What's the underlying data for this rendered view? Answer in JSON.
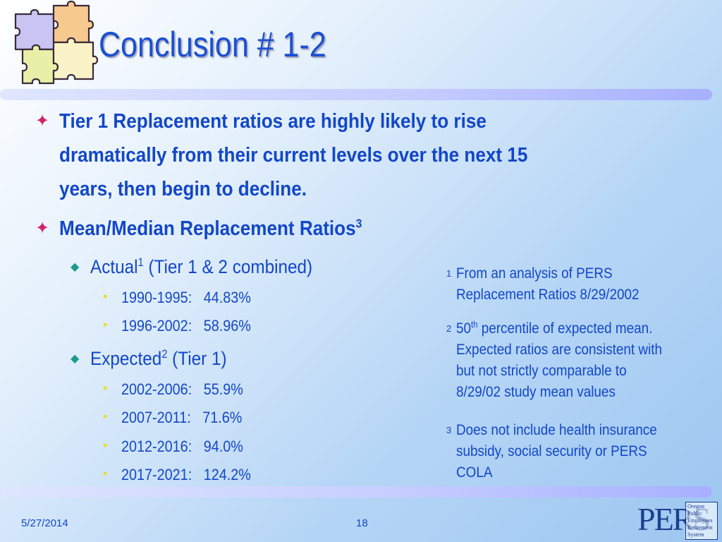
{
  "title": "Conclusion # 1-2",
  "bullets": {
    "b1_lines": [
      "Tier 1 Replacement ratios are highly likely to rise",
      "dramatically from their current levels over the next 15",
      "years, then begin to decline."
    ],
    "b2_text": "Mean/Median Replacement Ratios",
    "b2_sup": "3"
  },
  "actual": {
    "label": "Actual",
    "sup": "1",
    "suffix": " (Tier 1 & 2 combined)",
    "items": [
      "1990-1995:   44.83%",
      "1996-2002:   58.96%"
    ]
  },
  "expected": {
    "label": "Expected",
    "sup": "2",
    "suffix": " (Tier 1)",
    "items": [
      "2002-2006:   55.9%",
      "2007-2011:   71.6%",
      "2012-2016:   94.0%",
      "2017-2021:   124.2%"
    ]
  },
  "footnotes": {
    "f1_num": "1",
    "f1_lines": [
      "From an analysis of PERS",
      "Replacement Ratios 8/29/2002"
    ],
    "f2_num": "2",
    "f2_first_a": "50",
    "f2_first_sup": "th",
    "f2_first_b": " percentile of expected mean.",
    "f2_lines": [
      "Expected ratios are consistent with",
      "but not strictly comparable to",
      "8/29/02 study mean values"
    ],
    "f3_num": "3",
    "f3_lines": [
      "Does not include health insurance",
      "subsidy, social security or PERS",
      "COLA"
    ]
  },
  "footer": {
    "date": "5/27/2014",
    "page": "18"
  },
  "logo": {
    "letters": "PERS",
    "words": [
      "Oregon",
      "Public",
      "Employees",
      "Retirement",
      "System"
    ]
  },
  "colors": {
    "title": "#1b4fd3",
    "text": "#1347c7",
    "bullet_star": "#d0246a",
    "bullet_diamond": "#1a9a8a",
    "bullet_dot": "#e9e02a"
  },
  "icons": {
    "puzzle": "puzzle-pieces-icon",
    "level1": "four-point-star",
    "level2": "diamond",
    "level3": "dot"
  }
}
